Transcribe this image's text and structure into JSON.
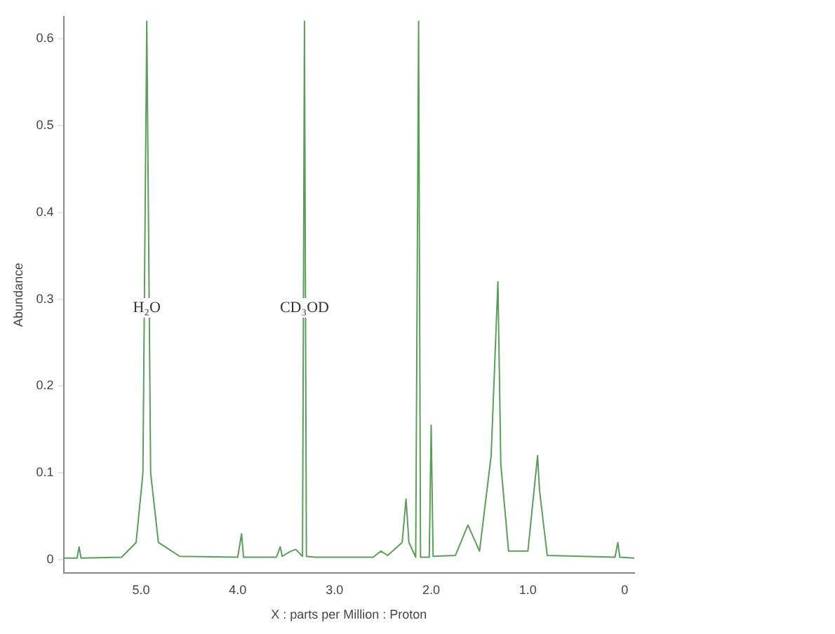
{
  "chart_data": {
    "type": "line",
    "xlabel": "X : parts per Million : Proton",
    "ylabel": "Abundance",
    "xlim": [
      5.8,
      -0.1
    ],
    "xticks": [
      {
        "value": 5,
        "label": "5.0"
      },
      {
        "value": 4,
        "label": "4.0"
      },
      {
        "value": 3,
        "label": "3.0"
      },
      {
        "value": 2,
        "label": "2.0"
      },
      {
        "value": 1,
        "label": "1.0"
      },
      0
    ],
    "ylim": [
      -0.015,
      0.625
    ],
    "yticks": [
      0,
      0.1,
      0.2,
      0.3,
      0.4,
      0.5,
      0.6
    ],
    "grid": false,
    "legend": false,
    "marker": "none",
    "annotations": [
      {
        "text": "H₂O",
        "x": 4.94,
        "y": 0.29
      },
      {
        "text": "CD₃OD",
        "x": 3.31,
        "y": 0.29
      }
    ],
    "series": [
      {
        "color": "#5a9e5a",
        "x": [
          5.8,
          5.66,
          5.64,
          5.62,
          5.2,
          5.05,
          4.98,
          4.94,
          4.9,
          4.82,
          4.6,
          4.0,
          3.96,
          3.94,
          3.6,
          3.56,
          3.54,
          3.45,
          3.4,
          3.33,
          3.31,
          3.29,
          3.2,
          2.6,
          2.52,
          2.45,
          2.3,
          2.26,
          2.23,
          2.16,
          2.13,
          2.11,
          2.02,
          2.0,
          1.98,
          1.75,
          1.62,
          1.5,
          1.38,
          1.31,
          1.28,
          1.2,
          1.0,
          0.9,
          0.88,
          0.8,
          0.1,
          0.07,
          0.05,
          -0.1
        ],
        "values": [
          0.002,
          0.002,
          0.015,
          0.002,
          0.003,
          0.02,
          0.1,
          0.62,
          0.1,
          0.02,
          0.004,
          0.003,
          0.03,
          0.003,
          0.003,
          0.015,
          0.004,
          0.01,
          0.012,
          0.004,
          0.62,
          0.004,
          0.003,
          0.003,
          0.01,
          0.005,
          0.02,
          0.07,
          0.02,
          0.003,
          0.62,
          0.003,
          0.003,
          0.155,
          0.004,
          0.005,
          0.04,
          0.01,
          0.12,
          0.32,
          0.11,
          0.01,
          0.01,
          0.12,
          0.08,
          0.005,
          0.003,
          0.02,
          0.003,
          0.002
        ]
      }
    ]
  }
}
